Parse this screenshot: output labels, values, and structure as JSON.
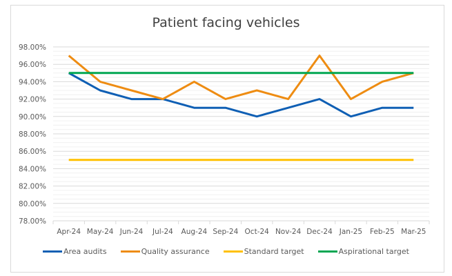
{
  "chart_data": {
    "type": "line",
    "title": "Patient facing vehicles",
    "xlabel": "",
    "ylabel": "",
    "categories": [
      "Apr-24",
      "May-24",
      "Jun-24",
      "Jul-24",
      "Aug-24",
      "Sep-24",
      "Oct-24",
      "Nov-24",
      "Dec-24",
      "Jan-25",
      "Feb-25",
      "Mar-25"
    ],
    "ylim": [
      0.78,
      0.98
    ],
    "ytick_values": [
      0.78,
      0.8,
      0.82,
      0.84,
      0.86,
      0.88,
      0.9,
      0.92,
      0.94,
      0.96,
      0.98
    ],
    "ytick_labels": [
      "78.00%",
      "80.00%",
      "82.00%",
      "84.00%",
      "86.00%",
      "88.00%",
      "90.00%",
      "92.00%",
      "94.00%",
      "96.00%",
      "98.00%"
    ],
    "grid": true,
    "minor_grid": true,
    "legend_position": "bottom",
    "series": [
      {
        "name": "Area audits",
        "color": "#0f5fb4",
        "values": [
          0.95,
          0.93,
          0.92,
          0.92,
          0.91,
          0.91,
          0.9,
          0.91,
          0.92,
          0.9,
          0.91,
          0.91
        ]
      },
      {
        "name": "Quality assurance",
        "color": "#ee8c12",
        "values": [
          0.97,
          0.94,
          0.93,
          0.92,
          0.94,
          0.92,
          0.93,
          0.92,
          0.97,
          0.92,
          0.94,
          0.95
        ]
      },
      {
        "name": "Standard target",
        "color": "#ffc000",
        "values": [
          0.85,
          0.85,
          0.85,
          0.85,
          0.85,
          0.85,
          0.85,
          0.85,
          0.85,
          0.85,
          0.85,
          0.85
        ]
      },
      {
        "name": "Aspirational target",
        "color": "#00a651",
        "values": [
          0.95,
          0.95,
          0.95,
          0.95,
          0.95,
          0.95,
          0.95,
          0.95,
          0.95,
          0.95,
          0.95,
          0.95
        ]
      }
    ]
  }
}
